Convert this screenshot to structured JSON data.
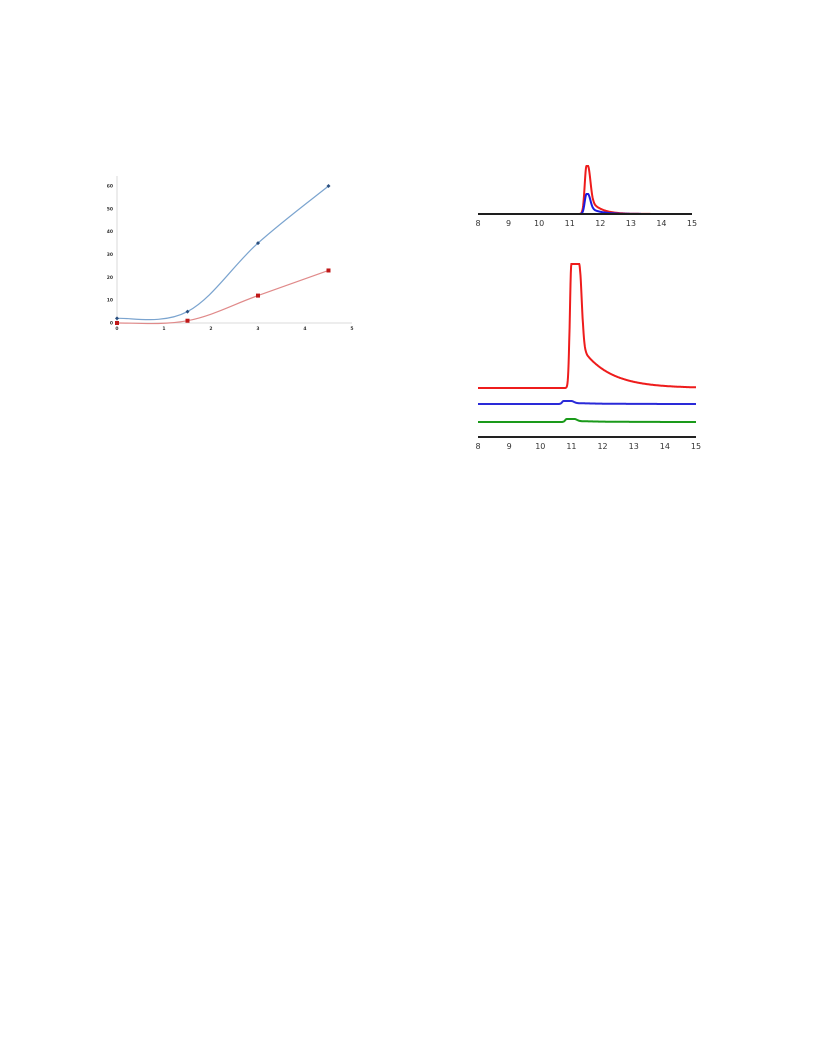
{
  "chart_data": [
    {
      "type": "line",
      "title": "",
      "xlabel": "",
      "ylabel": "",
      "xlim": [
        0,
        5
      ],
      "ylim": [
        0,
        60
      ],
      "x_ticks": [
        "0",
        "1",
        "2",
        "3",
        "4",
        "5"
      ],
      "y_ticks": [
        "0",
        "10",
        "20",
        "30",
        "40",
        "50",
        "60"
      ],
      "grid": false,
      "series": [
        {
          "color": "#7ba4cf",
          "marker_color": "#2a4f7f",
          "marker": "diamond",
          "x": [
            0,
            1.5,
            3,
            4.5
          ],
          "y": [
            2,
            5,
            35,
            60
          ]
        },
        {
          "color": "#e08a8a",
          "marker_color": "#c01818",
          "marker": "square",
          "x": [
            0,
            1.5,
            3,
            4.5
          ],
          "y": [
            0,
            1,
            12,
            23
          ]
        }
      ]
    },
    {
      "type": "line",
      "title": "",
      "xlabel": "",
      "ylabel": "",
      "xlim": [
        8,
        15
      ],
      "x_ticks": [
        "8",
        "9",
        "10",
        "11",
        "12",
        "13",
        "14",
        "15"
      ],
      "grid": false,
      "series": [
        {
          "color": "#ee1c1c",
          "peak_x": 11.55,
          "peak_height": 1.0
        },
        {
          "color": "#1a1ae0",
          "peak_x": 11.55,
          "peak_height": 0.4
        },
        {
          "color": "#111111",
          "peak_x": null,
          "peak_height": 0
        }
      ]
    },
    {
      "type": "line",
      "title": "",
      "xlabel": "",
      "ylabel": "",
      "xlim": [
        8,
        15
      ],
      "x_ticks": [
        "8",
        "9",
        "10",
        "11",
        "12",
        "13",
        "14",
        "15"
      ],
      "grid": false,
      "series": [
        {
          "color": "#ee1c1c",
          "peak_x": 11.0,
          "peak_height": 1.0
        },
        {
          "color": "#2a2ad8",
          "peak_x": 10.75,
          "peak_height": 0.01
        },
        {
          "color": "#1a9a1a",
          "peak_x": 10.85,
          "peak_height": 0.01
        },
        {
          "color": "#222222",
          "peak_x": null,
          "peak_height": 0
        }
      ]
    }
  ]
}
